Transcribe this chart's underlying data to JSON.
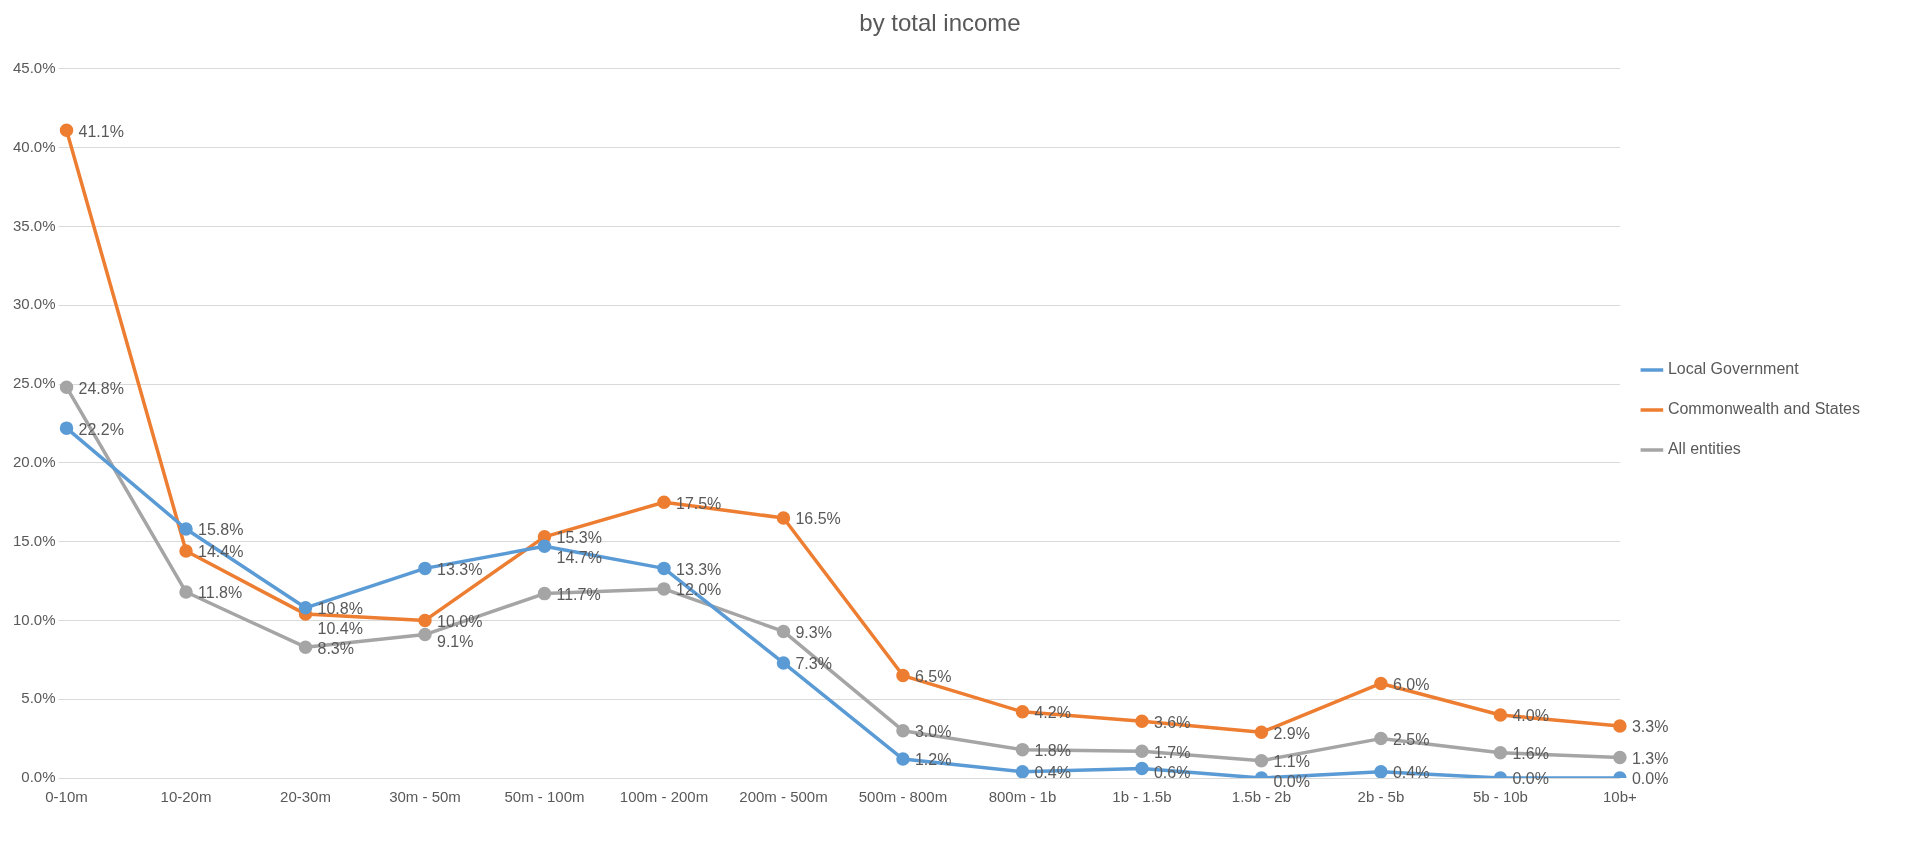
{
  "chart_data": {
    "type": "line",
    "title": "by total income",
    "categories": [
      "0-10m",
      "10-20m",
      "20-30m",
      "30m - 50m",
      "50m - 100m",
      "100m - 200m",
      "200m - 500m",
      "500m - 800m",
      "800m - 1b",
      "1b - 1.5b",
      "1.5b - 2b",
      "2b - 5b",
      "5b - 10b",
      "10b+"
    ],
    "series": [
      {
        "name": "Local Government",
        "color": "#5b9bd5",
        "values": [
          22.2,
          15.8,
          10.8,
          13.3,
          14.7,
          13.3,
          7.3,
          1.2,
          0.4,
          0.6,
          0.0,
          0.4,
          0.0,
          0.0
        ],
        "value_labels": [
          "22.2%",
          "15.8%",
          "10.8%",
          "13.3%",
          "14.7%",
          "13.3%",
          "7.3%",
          "1.2%",
          "0.4%",
          "0.6%",
          "0.0%",
          "0.4%",
          "0.0%",
          "0.0%"
        ]
      },
      {
        "name": "Commonwealth and States",
        "color": "#ed7d31",
        "values": [
          41.1,
          14.4,
          10.4,
          10.0,
          15.3,
          17.5,
          16.5,
          6.5,
          4.2,
          3.6,
          2.9,
          6.0,
          4.0,
          3.3
        ],
        "value_labels": [
          "41.1%",
          "14.4%",
          "10.4%",
          "10.0%",
          "15.3%",
          "17.5%",
          "16.5%",
          "6.5%",
          "4.2%",
          "3.6%",
          "2.9%",
          "6.0%",
          "4.0%",
          "3.3%"
        ]
      },
      {
        "name": "All entities",
        "color": "#a5a5a5",
        "values": [
          24.8,
          11.8,
          8.3,
          9.1,
          11.7,
          12.0,
          9.3,
          3.0,
          1.8,
          1.7,
          1.1,
          2.5,
          1.6,
          1.3
        ],
        "value_labels": [
          "24.8%",
          "11.8%",
          "8.3%",
          "9.1%",
          "11.7%",
          "12.0%",
          "9.3%",
          "3.0%",
          "1.8%",
          "1.7%",
          "1.1%",
          "2.5%",
          "1.6%",
          "1.3%"
        ]
      }
    ],
    "ylim": [
      0,
      45
    ],
    "yticks": [
      {
        "value": 0,
        "label": "0.0%"
      },
      {
        "value": 5,
        "label": "5.0%"
      },
      {
        "value": 10,
        "label": "10.0%"
      },
      {
        "value": 15,
        "label": "15.0%"
      },
      {
        "value": 20,
        "label": "20.0%"
      },
      {
        "value": 25,
        "label": "25.0%"
      },
      {
        "value": 30,
        "label": "30.0%"
      },
      {
        "value": 35,
        "label": "35.0%"
      },
      {
        "value": 40,
        "label": "40.0%"
      },
      {
        "value": 45,
        "label": "45.0%"
      }
    ],
    "grid": "y",
    "legend": "right",
    "marker": "circle",
    "line_style": "solid"
  }
}
